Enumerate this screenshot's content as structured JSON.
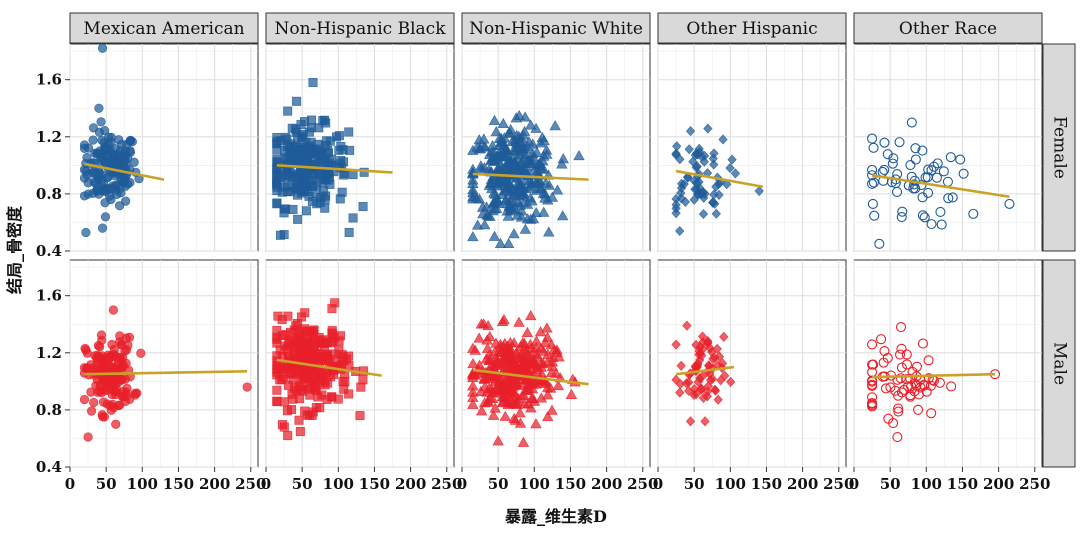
{
  "chart_data": {
    "type": "scatter",
    "facet_layout": "grid",
    "xlabel": "暴露_维生素D",
    "ylabel": "结局_骨密度",
    "xlim": [
      0,
      260
    ],
    "ylim": [
      0.4,
      1.85
    ],
    "x_ticks": [
      0,
      50,
      100,
      150,
      200,
      250
    ],
    "x_tick_labels": [
      "0",
      "50",
      "100",
      "150",
      "200",
      "250"
    ],
    "y_ticks": [
      0.4,
      0.8,
      1.2,
      1.6
    ],
    "y_tick_labels": [
      "0.4",
      "0.8",
      "1.2",
      "1.6"
    ],
    "columns": [
      "Mexican American",
      "Non-Hispanic Black",
      "Non-Hispanic White",
      "Other Hispanic",
      "Other Race"
    ],
    "rows": [
      "Female",
      "Male"
    ],
    "row_colors": {
      "Female": "#1f5b99",
      "Male": "#e8202a"
    },
    "fit_line_color": "#c9a227",
    "column_markers": [
      "circle",
      "square",
      "triangle",
      "diamond",
      "open-circle"
    ],
    "panels": [
      {
        "row": "Female",
        "column": "Mexican American",
        "n": 150,
        "x_range": [
          20,
          125
        ],
        "x_center": 55,
        "y_mean": 0.98,
        "y_sd": 0.13,
        "extremes": [
          [
            45,
            1.82
          ],
          [
            40,
            1.4
          ],
          [
            22,
            0.53
          ],
          [
            45,
            0.56
          ]
        ],
        "fit": [
          [
            20,
            1.01
          ],
          [
            130,
            0.9
          ]
        ]
      },
      {
        "row": "Female",
        "column": "Non-Hispanic Black",
        "n": 250,
        "x_range": [
          15,
          175
        ],
        "x_center": 55,
        "y_mean": 0.99,
        "y_sd": 0.14,
        "extremes": [
          [
            65,
            1.58
          ],
          [
            30,
            1.38
          ],
          [
            20,
            0.51
          ],
          [
            115,
            0.53
          ]
        ],
        "fit": [
          [
            15,
            1.0
          ],
          [
            175,
            0.95
          ]
        ]
      },
      {
        "row": "Female",
        "column": "Non-Hispanic White",
        "n": 300,
        "x_range": [
          15,
          175
        ],
        "x_center": 70,
        "y_mean": 0.93,
        "y_sd": 0.17,
        "extremes": [
          [
            75,
            1.33
          ],
          [
            95,
            1.28
          ],
          [
            45,
            0.5
          ],
          [
            120,
            0.53
          ]
        ],
        "fit": [
          [
            15,
            0.94
          ],
          [
            175,
            0.9
          ]
        ]
      },
      {
        "row": "Female",
        "column": "Other Hispanic",
        "n": 65,
        "x_range": [
          25,
          145
        ],
        "x_center": 55,
        "y_mean": 0.93,
        "y_sd": 0.14,
        "extremes": [
          [
            45,
            1.24
          ],
          [
            30,
            0.54
          ],
          [
            140,
            0.82
          ]
        ],
        "fit": [
          [
            25,
            0.96
          ],
          [
            145,
            0.85
          ]
        ]
      },
      {
        "row": "Female",
        "column": "Other Race",
        "n": 55,
        "x_range": [
          25,
          215
        ],
        "x_center": 70,
        "y_mean": 0.88,
        "y_sd": 0.16,
        "extremes": [
          [
            80,
            1.3
          ],
          [
            35,
            0.45
          ],
          [
            215,
            0.73
          ],
          [
            165,
            0.66
          ]
        ],
        "fit": [
          [
            25,
            0.93
          ],
          [
            215,
            0.78
          ]
        ]
      },
      {
        "row": "Male",
        "column": "Mexican American",
        "n": 160,
        "x_range": [
          20,
          110
        ],
        "x_center": 55,
        "y_mean": 1.04,
        "y_sd": 0.13,
        "extremes": [
          [
            60,
            1.5
          ],
          [
            25,
            0.61
          ],
          [
            245,
            0.96
          ]
        ],
        "fit": [
          [
            20,
            1.05
          ],
          [
            245,
            1.07
          ]
        ]
      },
      {
        "row": "Male",
        "column": "Non-Hispanic Black",
        "n": 250,
        "x_range": [
          15,
          165
        ],
        "x_center": 60,
        "y_mean": 1.12,
        "y_sd": 0.15,
        "extremes": [
          [
            95,
            1.55
          ],
          [
            30,
            0.62
          ],
          [
            130,
            0.76
          ]
        ],
        "fit": [
          [
            15,
            1.15
          ],
          [
            160,
            1.04
          ]
        ]
      },
      {
        "row": "Male",
        "column": "Non-Hispanic White",
        "n": 300,
        "x_range": [
          15,
          175
        ],
        "x_center": 70,
        "y_mean": 1.05,
        "y_sd": 0.14,
        "extremes": [
          [
            30,
            1.4
          ],
          [
            50,
            0.58
          ],
          [
            85,
            0.57
          ]
        ],
        "fit": [
          [
            15,
            1.08
          ],
          [
            175,
            0.98
          ]
        ]
      },
      {
        "row": "Male",
        "column": "Other Hispanic",
        "n": 65,
        "x_range": [
          25,
          110
        ],
        "x_center": 60,
        "y_mean": 1.05,
        "y_sd": 0.13,
        "extremes": [
          [
            40,
            1.39
          ],
          [
            45,
            0.72
          ],
          [
            65,
            0.72
          ]
        ],
        "fit": [
          [
            25,
            1.05
          ],
          [
            105,
            1.1
          ]
        ]
      },
      {
        "row": "Male",
        "column": "Other Race",
        "n": 65,
        "x_range": [
          25,
          195
        ],
        "x_center": 65,
        "y_mean": 1.02,
        "y_sd": 0.13,
        "extremes": [
          [
            65,
            1.38
          ],
          [
            60,
            0.61
          ],
          [
            195,
            1.05
          ]
        ],
        "fit": [
          [
            25,
            1.03
          ],
          [
            195,
            1.05
          ]
        ]
      }
    ]
  }
}
